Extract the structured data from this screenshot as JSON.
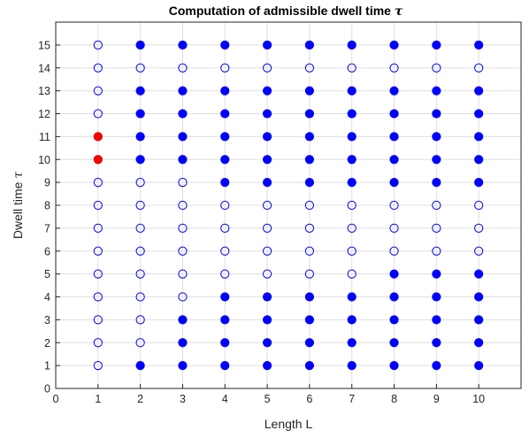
{
  "chart_data": {
    "type": "scatter",
    "title": "Computation of admissible dwell time",
    "title_symbol": "τ",
    "xlabel": "Length L",
    "ylabel": "Dwell time",
    "ylabel_symbol": "τ",
    "xlim": [
      0,
      11
    ],
    "ylim": [
      0,
      16
    ],
    "xticks": [
      0,
      1,
      2,
      3,
      4,
      5,
      6,
      7,
      8,
      9,
      10
    ],
    "yticks": [
      0,
      1,
      2,
      3,
      4,
      5,
      6,
      7,
      8,
      9,
      10,
      11,
      12,
      13,
      14,
      15
    ],
    "grid": true,
    "marker_colors": {
      "filled": "#0000ff",
      "open": "#0000ff",
      "highlight": "#ff0000"
    },
    "columns": [
      {
        "x": 1,
        "filled": [],
        "highlight": [
          10,
          11
        ]
      },
      {
        "x": 2,
        "filled": [
          1,
          10,
          11,
          12,
          13,
          15
        ],
        "highlight": []
      },
      {
        "x": 3,
        "filled": [
          1,
          2,
          3,
          10,
          11,
          12,
          13,
          15
        ],
        "highlight": []
      },
      {
        "x": 4,
        "filled": [
          1,
          2,
          3,
          4,
          9,
          10,
          11,
          12,
          13,
          15
        ],
        "highlight": []
      },
      {
        "x": 5,
        "filled": [
          1,
          2,
          3,
          4,
          9,
          10,
          11,
          12,
          13,
          15
        ],
        "highlight": []
      },
      {
        "x": 6,
        "filled": [
          1,
          2,
          3,
          4,
          9,
          10,
          11,
          12,
          13,
          15
        ],
        "highlight": []
      },
      {
        "x": 7,
        "filled": [
          1,
          2,
          3,
          4,
          9,
          10,
          11,
          12,
          13,
          15
        ],
        "highlight": []
      },
      {
        "x": 8,
        "filled": [
          1,
          2,
          3,
          4,
          5,
          9,
          10,
          11,
          12,
          13,
          15
        ],
        "highlight": []
      },
      {
        "x": 9,
        "filled": [
          1,
          2,
          3,
          4,
          5,
          9,
          10,
          11,
          12,
          13,
          15
        ],
        "highlight": []
      },
      {
        "x": 10,
        "filled": [
          1,
          2,
          3,
          4,
          5,
          9,
          10,
          11,
          12,
          13,
          15
        ],
        "highlight": []
      }
    ],
    "y_range_per_column": [
      1,
      15
    ]
  }
}
